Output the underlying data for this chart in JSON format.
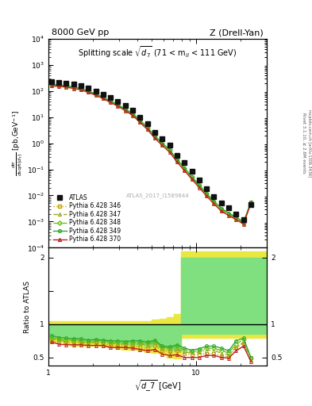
{
  "title_left": "8000 GeV pp",
  "title_right": "Z (Drell-Yan)",
  "inner_title": "Splitting scale $\\sqrt{d_7}$ (71 < m$_{ll}$ < 111 GeV)",
  "ylabel_main": "d$\\sigma$/dsqrt($d_7$) [pb,GeV$^{-1}$]",
  "ylabel_ratio": "Ratio to ATLAS",
  "xlabel": "sqrt{d_7} [GeV]",
  "right_label1": "Rivet 3.1.10, ≥ 2.6M events",
  "right_label2": "mcplots.cern.ch [arXiv:1306.3436]",
  "watermark": "ATLAS_2017_I1589844",
  "xlim": [
    1.0,
    30.0
  ],
  "ylim_main": [
    0.0001,
    10000.0
  ],
  "ylim_ratio": [
    0.38,
    2.15
  ],
  "atlas_x": [
    1.05,
    1.18,
    1.32,
    1.48,
    1.66,
    1.86,
    2.09,
    2.34,
    2.63,
    2.95,
    3.31,
    3.72,
    4.17,
    4.68,
    5.25,
    5.89,
    6.61,
    7.41,
    8.32,
    9.33,
    10.47,
    11.75,
    13.18,
    14.79,
    16.6,
    18.62,
    20.89,
    23.44
  ],
  "atlas_y": [
    220,
    210,
    200,
    180,
    160,
    130,
    100,
    75,
    55,
    40,
    27,
    18,
    10,
    5.5,
    2.5,
    1.5,
    0.85,
    0.35,
    0.18,
    0.085,
    0.04,
    0.018,
    0.009,
    0.005,
    0.0035,
    0.002,
    0.0012,
    0.0045
  ],
  "p346_y": [
    160,
    155,
    145,
    130,
    115,
    92,
    72,
    53,
    38,
    27,
    18,
    12,
    6.5,
    3.5,
    1.7,
    0.9,
    0.5,
    0.21,
    0.1,
    0.046,
    0.022,
    0.01,
    0.005,
    0.0026,
    0.0018,
    0.0013,
    0.00085,
    0.0055
  ],
  "p347_y": [
    165,
    158,
    148,
    132,
    117,
    94,
    73,
    54,
    39,
    28,
    19,
    12.5,
    7.0,
    3.8,
    1.8,
    0.95,
    0.52,
    0.22,
    0.105,
    0.048,
    0.023,
    0.011,
    0.0055,
    0.0028,
    0.0019,
    0.0013,
    0.00088,
    0.0053
  ],
  "p348_y": [
    170,
    162,
    152,
    136,
    120,
    96,
    75,
    56,
    40,
    29,
    19.5,
    13,
    7.2,
    3.9,
    1.85,
    0.98,
    0.54,
    0.23,
    0.11,
    0.05,
    0.024,
    0.0115,
    0.0058,
    0.003,
    0.002,
    0.0014,
    0.00092,
    0.0055
  ],
  "p349_y": [
    175,
    168,
    157,
    140,
    124,
    99,
    77,
    57,
    41,
    30,
    20,
    13.5,
    7.5,
    4.0,
    1.9,
    1.0,
    0.56,
    0.24,
    0.115,
    0.052,
    0.025,
    0.012,
    0.006,
    0.0032,
    0.0021,
    0.0015,
    0.00095,
    0.0056
  ],
  "p370_y": [
    155,
    148,
    138,
    124,
    110,
    88,
    68,
    51,
    36,
    26,
    17.5,
    11.5,
    6.2,
    3.3,
    1.55,
    0.82,
    0.45,
    0.19,
    0.09,
    0.042,
    0.02,
    0.0095,
    0.0048,
    0.0025,
    0.0017,
    0.0012,
    0.0008,
    0.005
  ],
  "ratio_346_y": [
    0.75,
    0.73,
    0.72,
    0.72,
    0.72,
    0.71,
    0.72,
    0.71,
    0.69,
    0.67,
    0.67,
    0.67,
    0.65,
    0.64,
    0.68,
    0.6,
    0.59,
    0.6,
    0.56,
    0.54,
    0.55,
    0.56,
    0.56,
    0.52,
    0.51,
    0.65,
    0.71,
    0.5
  ],
  "ratio_347_y": [
    0.78,
    0.76,
    0.74,
    0.74,
    0.73,
    0.72,
    0.73,
    0.72,
    0.71,
    0.7,
    0.7,
    0.69,
    0.7,
    0.69,
    0.72,
    0.63,
    0.61,
    0.63,
    0.58,
    0.57,
    0.58,
    0.61,
    0.61,
    0.56,
    0.54,
    0.65,
    0.73,
    0.46
  ],
  "ratio_348_y": [
    0.8,
    0.77,
    0.76,
    0.76,
    0.75,
    0.74,
    0.75,
    0.75,
    0.73,
    0.72,
    0.72,
    0.72,
    0.72,
    0.71,
    0.74,
    0.65,
    0.64,
    0.66,
    0.61,
    0.59,
    0.6,
    0.64,
    0.64,
    0.6,
    0.57,
    0.7,
    0.77,
    0.48
  ],
  "ratio_349_y": [
    0.83,
    0.8,
    0.79,
    0.78,
    0.78,
    0.76,
    0.77,
    0.76,
    0.75,
    0.75,
    0.74,
    0.75,
    0.75,
    0.73,
    0.76,
    0.67,
    0.66,
    0.69,
    0.64,
    0.61,
    0.63,
    0.67,
    0.67,
    0.64,
    0.6,
    0.75,
    0.79,
    0.5
  ],
  "ratio_370_y": [
    0.73,
    0.7,
    0.69,
    0.69,
    0.69,
    0.68,
    0.68,
    0.68,
    0.65,
    0.65,
    0.65,
    0.64,
    0.62,
    0.6,
    0.62,
    0.55,
    0.53,
    0.54,
    0.5,
    0.5,
    0.5,
    0.53,
    0.53,
    0.5,
    0.49,
    0.6,
    0.67,
    0.44
  ],
  "band_edges": [
    1.0,
    1.12,
    1.26,
    1.41,
    1.58,
    1.78,
    2.0,
    2.24,
    2.51,
    2.82,
    3.16,
    3.55,
    3.98,
    4.47,
    5.01,
    5.62,
    6.31,
    7.08,
    7.94,
    8.91,
    30.0
  ],
  "band_green_lo": [
    0.8,
    0.8,
    0.78,
    0.76,
    0.76,
    0.75,
    0.75,
    0.74,
    0.73,
    0.72,
    0.7,
    0.7,
    0.69,
    0.68,
    0.67,
    0.65,
    0.62,
    0.6,
    0.85,
    0.85,
    0.85
  ],
  "band_green_hi": [
    1.0,
    1.0,
    1.0,
    1.0,
    1.0,
    1.0,
    1.0,
    1.0,
    1.0,
    1.0,
    1.0,
    1.0,
    1.0,
    1.0,
    1.0,
    1.0,
    1.0,
    1.0,
    2.0,
    2.0,
    2.0
  ],
  "band_yellow_lo": [
    0.73,
    0.73,
    0.7,
    0.68,
    0.68,
    0.67,
    0.67,
    0.66,
    0.65,
    0.63,
    0.62,
    0.62,
    0.6,
    0.58,
    0.57,
    0.54,
    0.5,
    0.48,
    0.8,
    0.8,
    0.8
  ],
  "band_yellow_hi": [
    1.05,
    1.05,
    1.05,
    1.05,
    1.05,
    1.05,
    1.05,
    1.05,
    1.05,
    1.05,
    1.05,
    1.05,
    1.05,
    1.05,
    1.07,
    1.08,
    1.1,
    1.15,
    2.1,
    2.1,
    2.1
  ],
  "color_346": "#c8a000",
  "color_347": "#a0a820",
  "color_348": "#70c010",
  "color_349": "#30a830",
  "color_370": "#bb2020",
  "color_atlas": "#111111",
  "color_green_band": "#80e080",
  "color_yellow_band": "#e8e840"
}
